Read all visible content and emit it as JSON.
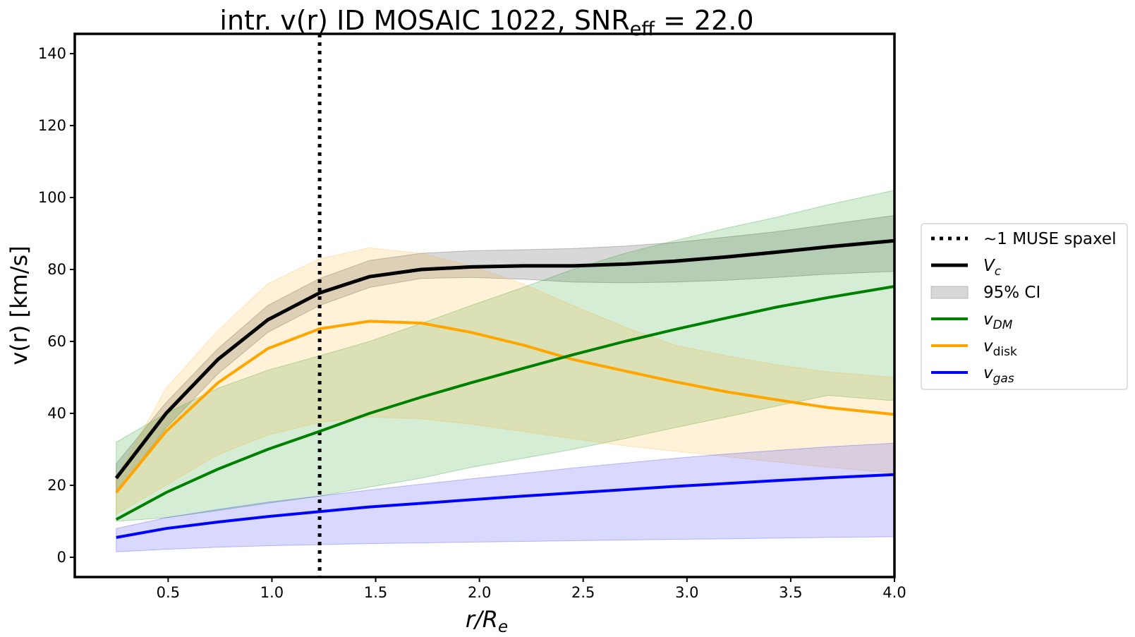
{
  "chart_data": {
    "type": "line",
    "title": {
      "main": "intr. v(r) ID MOSAIC 1022, SNR",
      "subscript": "eff",
      "suffix": " = 22.0"
    },
    "xlabel": {
      "base": "r/R",
      "subscript": "e"
    },
    "ylabel": "v(r) [km/s]",
    "xlim": [
      0.05,
      4.0
    ],
    "ylim": [
      -5.5,
      145.5
    ],
    "xticks": [
      0.5,
      1.0,
      1.5,
      2.0,
      2.5,
      3.0,
      3.5,
      4.0
    ],
    "xtick_labels": [
      "0.5",
      "1.0",
      "1.5",
      "2.0",
      "2.5",
      "3.0",
      "3.5",
      "4.0"
    ],
    "yticks": [
      0,
      20,
      40,
      60,
      80,
      100,
      120,
      140
    ],
    "ytick_labels": [
      "0",
      "20",
      "40",
      "60",
      "80",
      "100",
      "120",
      "140"
    ],
    "vline": {
      "x": 1.23,
      "style": "dotted",
      "color": "#000000",
      "label": "~1 MUSE spaxel"
    },
    "x": [
      0.25,
      0.49,
      0.74,
      0.98,
      1.23,
      1.47,
      1.72,
      1.96,
      2.21,
      2.45,
      2.7,
      2.94,
      3.19,
      3.43,
      3.68,
      4.0
    ],
    "series": [
      {
        "name": "V_c",
        "legend_base": "V",
        "legend_sub": "c",
        "italic": true,
        "color": "#000000",
        "line_width": 5,
        "values": [
          22,
          40,
          55,
          66,
          73.5,
          78,
          80,
          80.7,
          81,
          81,
          81.5,
          82.3,
          83.5,
          84.8,
          86.3,
          88
        ],
        "band_lower": [
          18,
          36,
          51,
          62.5,
          70,
          75,
          77.5,
          77.8,
          77.3,
          76.5,
          76.3,
          76.5,
          77,
          77.8,
          78.7,
          79.5
        ],
        "band_upper": [
          26,
          43,
          58,
          70,
          77.5,
          82.5,
          84.5,
          85.2,
          85.5,
          85.8,
          86.5,
          87.5,
          89,
          90.5,
          92.5,
          95
        ],
        "band_color": "#7f7f7f",
        "band_alpha": 0.3
      },
      {
        "name": "v_DM",
        "legend_base": "v",
        "legend_sub": "DM",
        "italic": true,
        "color": "#008000",
        "line_width": 4,
        "values": [
          10.5,
          18,
          24.5,
          30,
          35,
          40,
          44.5,
          48.5,
          52.5,
          56.3,
          60,
          63.3,
          66.5,
          69.5,
          72.2,
          75.3
        ],
        "band_lower": [
          10,
          11,
          13,
          15,
          17,
          19.5,
          22,
          25,
          27.5,
          30,
          33,
          36,
          39,
          42,
          45,
          43.5
        ],
        "band_upper": [
          32,
          40,
          47,
          52,
          56,
          60,
          65,
          70,
          75,
          80,
          84.5,
          88,
          91.5,
          94.5,
          98,
          102
        ],
        "band_color": "#2ca02c",
        "band_alpha": 0.2
      },
      {
        "name": "v_disk",
        "legend_base": "v",
        "legend_sub": "disk",
        "italic": false,
        "color": "#ffa500",
        "line_width": 4,
        "values": [
          18,
          35,
          48.5,
          58,
          63.5,
          65.6,
          65.1,
          62.5,
          59,
          55,
          51.8,
          48.8,
          46,
          43.8,
          41.6,
          39.7
        ],
        "band_lower": [
          12,
          20,
          28.5,
          34,
          37.5,
          39,
          38.5,
          37,
          35,
          33,
          31,
          29.5,
          28,
          26.5,
          25,
          23.5
        ],
        "band_upper": [
          22,
          47,
          63,
          76,
          83,
          86,
          84.5,
          81,
          76,
          70,
          64,
          59,
          56,
          53.5,
          51.5,
          50
        ],
        "band_color": "#ffa500",
        "band_alpha": 0.15
      },
      {
        "name": "v_gas",
        "legend_base": "v",
        "legend_sub": "gas",
        "italic": true,
        "color": "#0000ff",
        "line_width": 4,
        "values": [
          5.5,
          8,
          9.8,
          11.3,
          12.7,
          14,
          15,
          16,
          17,
          17.9,
          18.8,
          19.7,
          20.5,
          21.3,
          22.1,
          23
        ],
        "band_lower": [
          1.5,
          2.2,
          2.8,
          3.2,
          3.5,
          3.8,
          4,
          4.2,
          4.4,
          4.6,
          4.8,
          5,
          5.1,
          5.3,
          5.5,
          5.7
        ],
        "band_upper": [
          8,
          11,
          13.3,
          15.3,
          17,
          18.7,
          20.3,
          21.8,
          23.3,
          24.8,
          26.2,
          27.5,
          28.7,
          29.7,
          30.7,
          31.7
        ],
        "band_color": "#0000ff",
        "band_alpha": 0.15
      }
    ],
    "legend": {
      "placement": "center-right-outside",
      "entries": [
        {
          "kind": "dotted",
          "label": "~1 MUSE spaxel"
        },
        {
          "kind": "line",
          "series": "V_c",
          "base": "V",
          "sub": "c",
          "italic": true
        },
        {
          "kind": "band",
          "label": "95% CI"
        },
        {
          "kind": "line",
          "series": "v_DM",
          "base": "v",
          "sub": "DM",
          "italic": true
        },
        {
          "kind": "line",
          "series": "v_disk",
          "base": "v",
          "sub": "disk",
          "italic": false
        },
        {
          "kind": "line",
          "series": "v_gas",
          "base": "v",
          "sub": "gas",
          "italic": true
        }
      ]
    },
    "grid": false
  }
}
